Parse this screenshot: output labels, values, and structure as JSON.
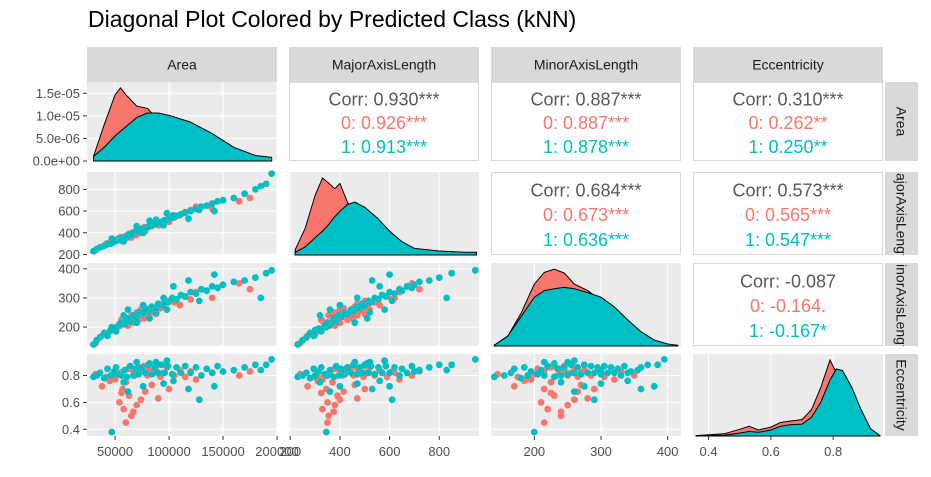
{
  "chart_data": {
    "type": "scatter",
    "subtype": "pairs-matrix",
    "title": "Diagonal Plot Colored by Predicted Class (kNN)",
    "variables": [
      "Area",
      "MajorAxisLength",
      "MinorAxisLength",
      "Eccentricity"
    ],
    "row_strip_labels": [
      "Area",
      "MajorAxisLength",
      "MinorAxisLength",
      "Eccentricity"
    ],
    "classes": [
      {
        "name": "0",
        "color": "#F8766D"
      },
      {
        "name": "1",
        "color": "#00BFC4"
      }
    ],
    "axes": {
      "Area": {
        "range": [
          24000,
          200000
        ],
        "ticks": [
          50000,
          100000,
          150000,
          200000
        ],
        "tick_labels": [
          "50000",
          "100000",
          "150000",
          "200000"
        ]
      },
      "MajorAxisLength": {
        "range": [
          195,
          960
        ],
        "ticks": [
          200,
          400,
          600,
          800
        ],
        "tick_labels": [
          "200",
          "400",
          "600",
          "800"
        ]
      },
      "MinorAxisLength": {
        "range": [
          135,
          420
        ],
        "ticks": [
          200,
          300,
          400
        ],
        "tick_labels": [
          "200",
          "300",
          "400"
        ]
      },
      "Eccentricity": {
        "range": [
          0.35,
          0.96
        ],
        "ticks": [
          0.4,
          0.6,
          0.8
        ],
        "tick_labels": [
          "0.4",
          "0.6",
          "0.8"
        ]
      }
    },
    "density_axis_area": {
      "range": [
        0,
        1.75e-05
      ],
      "ticks": [
        0,
        5e-06,
        1e-05,
        1.5e-05
      ],
      "tick_labels": [
        "0.0e+00",
        "5.0e-06",
        "1.0e-05",
        "1.5e-05"
      ]
    },
    "correlations": [
      {
        "row": "Area",
        "col": "MajorAxisLength",
        "overall": "Corr: 0.930***",
        "class0": "0: 0.926***",
        "class1": "1: 0.913***"
      },
      {
        "row": "Area",
        "col": "MinorAxisLength",
        "overall": "Corr: 0.887***",
        "class0": "0: 0.887***",
        "class1": "1: 0.878***"
      },
      {
        "row": "Area",
        "col": "Eccentricity",
        "overall": "Corr: 0.310***",
        "class0": "0: 0.262**",
        "class1": "1: 0.250**"
      },
      {
        "row": "MajorAxisLength",
        "col": "MinorAxisLength",
        "overall": "Corr: 0.684***",
        "class0": "0: 0.673***",
        "class1": "1: 0.636***"
      },
      {
        "row": "MajorAxisLength",
        "col": "Eccentricity",
        "overall": "Corr: 0.573***",
        "class0": "0: 0.565***",
        "class1": "1: 0.547***"
      },
      {
        "row": "MinorAxisLength",
        "col": "Eccentricity",
        "overall": "Corr: -0.087",
        "class0": "0: -0.164.",
        "class1": "1: -0.167*"
      }
    ],
    "densities": {
      "Area": {
        "x": [
          30000,
          40000,
          50000,
          55000,
          60000,
          70000,
          80000,
          90000,
          100000,
          120000,
          140000,
          160000,
          180000,
          195000
        ],
        "class0": [
          1e-06,
          8e-06,
          1.45e-05,
          1.6e-05,
          1.45e-05,
          1.2e-05,
          1.15e-05,
          9e-06,
          6e-06,
          2.5e-06,
          1.5e-06,
          1e-06,
          7e-07,
          5e-07
        ],
        "class1": [
          1e-06,
          3e-06,
          5.5e-06,
          6.5e-06,
          7.5e-06,
          9.5e-06,
          1.05e-05,
          1.05e-05,
          1e-05,
          8.5e-06,
          6e-06,
          3e-06,
          1.2e-06,
          8e-07
        ]
      },
      "MajorAxisLength": {
        "x": [
          220,
          260,
          300,
          330,
          350,
          380,
          400,
          430,
          460,
          500,
          550,
          600,
          650,
          700,
          800,
          900,
          950
        ],
        "class0": [
          0.0004,
          0.002,
          0.0045,
          0.0058,
          0.0055,
          0.005,
          0.0054,
          0.004,
          0.0028,
          0.0018,
          0.001,
          0.0005,
          0.0003,
          0.0002,
          0.0001,
          5e-05,
          5e-05
        ],
        "class1": [
          0.0002,
          0.0006,
          0.0013,
          0.0018,
          0.0022,
          0.0029,
          0.0033,
          0.0038,
          0.004,
          0.0036,
          0.0028,
          0.0018,
          0.001,
          0.0005,
          0.0003,
          0.0002,
          0.0002
        ]
      },
      "MinorAxisLength": {
        "x": [
          140,
          160,
          180,
          200,
          215,
          230,
          245,
          260,
          280,
          300,
          320,
          340,
          360,
          380,
          400,
          415
        ],
        "class0": [
          0.0001,
          0.0015,
          0.005,
          0.0095,
          0.0113,
          0.0118,
          0.0112,
          0.0095,
          0.0085,
          0.007,
          0.0055,
          0.0032,
          0.0015,
          0.0005,
          0.0002,
          0.0001
        ],
        "class1": [
          0.0001,
          0.0015,
          0.0045,
          0.0075,
          0.0085,
          0.0088,
          0.009,
          0.0088,
          0.0082,
          0.0075,
          0.006,
          0.004,
          0.0022,
          0.0009,
          0.0003,
          0.0001
        ]
      },
      "Eccentricity": {
        "x": [
          0.36,
          0.45,
          0.5,
          0.53,
          0.56,
          0.6,
          0.63,
          0.66,
          0.7,
          0.73,
          0.76,
          0.79,
          0.81,
          0.83,
          0.86,
          0.89,
          0.92,
          0.95
        ],
        "class0": [
          0.05,
          0.3,
          0.9,
          1.3,
          0.8,
          1.2,
          1.8,
          2.0,
          2.2,
          3.5,
          6.5,
          10.2,
          8.5,
          7.0,
          5.0,
          2.5,
          0.6,
          0.05
        ],
        "class1": [
          0.02,
          0.1,
          0.4,
          0.6,
          0.5,
          0.8,
          1.3,
          1.5,
          1.6,
          2.5,
          4.5,
          7.5,
          9.0,
          8.8,
          6.5,
          3.5,
          1.0,
          0.05
        ]
      }
    },
    "points": {
      "class0": [
        [
          32000,
          240,
          145,
          0.81
        ],
        [
          38000,
          270,
          170,
          0.72
        ],
        [
          42000,
          300,
          175,
          0.79
        ],
        [
          45000,
          310,
          185,
          0.76
        ],
        [
          48000,
          320,
          190,
          0.78
        ],
        [
          50000,
          330,
          195,
          0.77
        ],
        [
          52000,
          340,
          200,
          0.81
        ],
        [
          54000,
          350,
          210,
          0.6
        ],
        [
          55000,
          360,
          205,
          0.82
        ],
        [
          57000,
          345,
          215,
          0.7
        ],
        [
          58000,
          330,
          220,
          0.55
        ],
        [
          60000,
          370,
          225,
          0.75
        ],
        [
          62000,
          380,
          205,
          0.85
        ],
        [
          63000,
          390,
          230,
          0.65
        ],
        [
          65000,
          355,
          240,
          0.5
        ],
        [
          66000,
          400,
          215,
          0.84
        ],
        [
          68000,
          410,
          235,
          0.8
        ],
        [
          70000,
          380,
          250,
          0.58
        ],
        [
          71000,
          420,
          240,
          0.83
        ],
        [
          72000,
          430,
          225,
          0.86
        ],
        [
          74000,
          400,
          260,
          0.62
        ],
        [
          75000,
          440,
          245,
          0.84
        ],
        [
          77000,
          450,
          230,
          0.87
        ],
        [
          78000,
          415,
          265,
          0.68
        ],
        [
          80000,
          455,
          250,
          0.8
        ],
        [
          82000,
          470,
          240,
          0.85
        ],
        [
          84000,
          460,
          270,
          0.73
        ],
        [
          86000,
          480,
          255,
          0.82
        ],
        [
          88000,
          500,
          245,
          0.87
        ],
        [
          90000,
          470,
          280,
          0.63
        ],
        [
          92000,
          495,
          265,
          0.79
        ],
        [
          95000,
          510,
          270,
          0.82
        ],
        [
          98000,
          520,
          260,
          0.86
        ],
        [
          100000,
          500,
          290,
          0.7
        ],
        [
          105000,
          540,
          285,
          0.8
        ],
        [
          110000,
          560,
          275,
          0.84
        ],
        [
          115000,
          590,
          305,
          0.79
        ],
        [
          120000,
          610,
          295,
          0.83
        ],
        [
          125000,
          640,
          320,
          0.77
        ],
        [
          140000,
          620,
          300,
          0.82
        ],
        [
          165000,
          690,
          350,
          0.8
        ],
        [
          175000,
          720,
          330,
          0.83
        ],
        [
          60000,
          350,
          215,
          0.45
        ],
        [
          67000,
          375,
          240,
          0.53
        ],
        [
          56000,
          325,
          225,
          0.67
        ]
      ],
      "class1": [
        [
          30000,
          230,
          140,
          0.79
        ],
        [
          33000,
          250,
          155,
          0.8
        ],
        [
          36000,
          265,
          165,
          0.82
        ],
        [
          40000,
          280,
          180,
          0.78
        ],
        [
          43000,
          295,
          170,
          0.85
        ],
        [
          46000,
          300,
          190,
          0.8
        ],
        [
          49000,
          315,
          195,
          0.83
        ],
        [
          51000,
          325,
          185,
          0.86
        ],
        [
          53000,
          340,
          205,
          0.81
        ],
        [
          56000,
          350,
          215,
          0.8
        ],
        [
          59000,
          360,
          210,
          0.84
        ],
        [
          61000,
          375,
          230,
          0.79
        ],
        [
          64000,
          385,
          220,
          0.87
        ],
        [
          67000,
          395,
          240,
          0.8
        ],
        [
          69000,
          405,
          235,
          0.85
        ],
        [
          72000,
          420,
          250,
          0.81
        ],
        [
          75000,
          430,
          245,
          0.86
        ],
        [
          78000,
          445,
          260,
          0.82
        ],
        [
          81000,
          455,
          255,
          0.88
        ],
        [
          84000,
          470,
          270,
          0.81
        ],
        [
          87000,
          480,
          265,
          0.86
        ],
        [
          90000,
          490,
          280,
          0.82
        ],
        [
          93000,
          500,
          275,
          0.88
        ],
        [
          96000,
          515,
          290,
          0.82
        ],
        [
          99000,
          525,
          285,
          0.87
        ],
        [
          103000,
          540,
          300,
          0.81
        ],
        [
          107000,
          555,
          295,
          0.86
        ],
        [
          111000,
          570,
          310,
          0.82
        ],
        [
          115000,
          585,
          305,
          0.87
        ],
        [
          120000,
          600,
          320,
          0.82
        ],
        [
          125000,
          620,
          315,
          0.86
        ],
        [
          130000,
          640,
          330,
          0.8
        ],
        [
          135000,
          650,
          325,
          0.85
        ],
        [
          140000,
          670,
          340,
          0.82
        ],
        [
          145000,
          690,
          335,
          0.87
        ],
        [
          150000,
          700,
          345,
          0.83
        ],
        [
          160000,
          720,
          355,
          0.84
        ],
        [
          170000,
          760,
          360,
          0.86
        ],
        [
          180000,
          800,
          370,
          0.88
        ],
        [
          190000,
          850,
          385,
          0.88
        ],
        [
          195000,
          945,
          395,
          0.92
        ],
        [
          185000,
          830,
          300,
          0.84
        ],
        [
          95000,
          470,
          300,
          0.74
        ],
        [
          88000,
          520,
          250,
          0.9
        ],
        [
          76000,
          400,
          275,
          0.72
        ],
        [
          104000,
          560,
          340,
          0.76
        ],
        [
          118000,
          530,
          360,
          0.7
        ],
        [
          62000,
          360,
          260,
          0.68
        ],
        [
          142000,
          600,
          380,
          0.72
        ],
        [
          58000,
          320,
          240,
          0.75
        ],
        [
          70000,
          460,
          215,
          0.9
        ],
        [
          82000,
          510,
          230,
          0.89
        ],
        [
          98000,
          580,
          260,
          0.91
        ],
        [
          47000,
          345,
          200,
          0.38
        ],
        [
          128000,
          610,
          290,
          0.62
        ]
      ]
    }
  }
}
